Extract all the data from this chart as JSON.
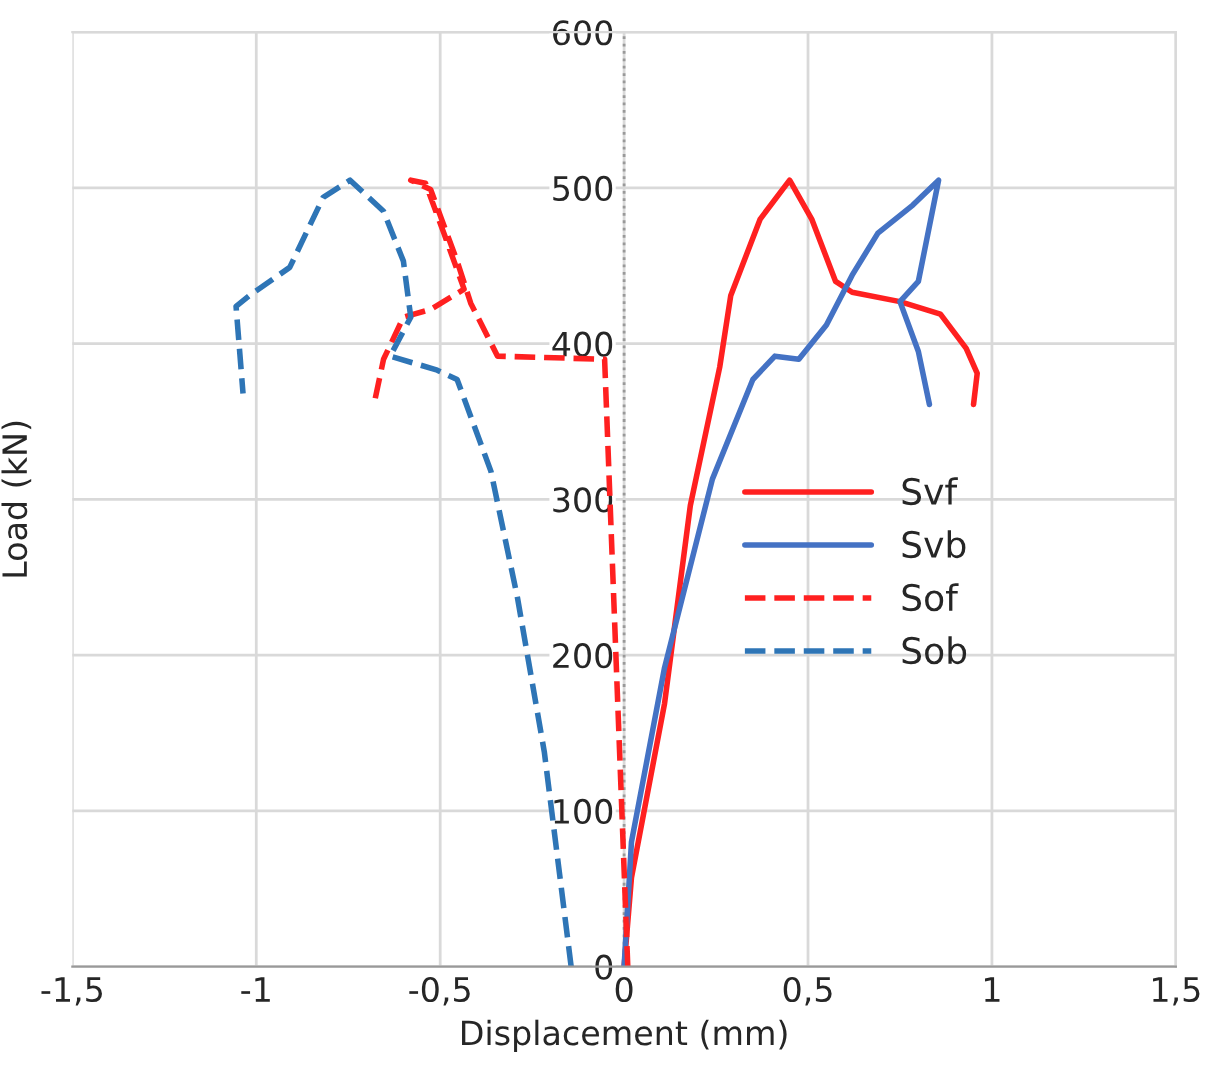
{
  "chart_data": {
    "type": "line",
    "xlabel": "Displacement (mm)",
    "ylabel": "Load (kN)",
    "xlim": [
      -1.5,
      1.5
    ],
    "xticks": [
      {
        "value": -1.5,
        "label": "-1,5"
      },
      {
        "value": -1,
        "label": "-1"
      },
      {
        "value": -0.5,
        "label": "-0,5"
      },
      0,
      {
        "value": 0.5,
        "label": "0,5"
      },
      1,
      {
        "value": 1.5,
        "label": "1,5"
      }
    ],
    "ylim": [
      0,
      600
    ],
    "yticks": [
      0,
      100,
      200,
      300,
      400,
      500,
      600
    ],
    "grid": true,
    "legend": "right",
    "ref_lines": [
      {
        "axis": "x",
        "value": 0,
        "color": "#999999",
        "line_style": "dotted"
      }
    ],
    "series": [
      {
        "name": "Svf",
        "color": "#ff2020",
        "line_style": "solid",
        "x": [
          0,
          0.02,
          0.11,
          0.18,
          0.26,
          0.29,
          0.37,
          0.45,
          0.51,
          0.575,
          0.62,
          0.75,
          0.86,
          0.93,
          0.96,
          0.95
        ],
        "values": [
          0,
          57,
          169,
          296,
          385,
          431,
          480,
          505,
          480,
          440,
          433,
          427,
          419,
          397,
          381,
          361
        ]
      },
      {
        "name": "Svb",
        "color": "#4472c4",
        "line_style": "solid",
        "x": [
          0,
          0.02,
          0.11,
          0.24,
          0.35,
          0.41,
          0.475,
          0.55,
          0.62,
          0.69,
          0.785,
          0.855,
          0.8,
          0.75,
          0.8,
          0.83
        ],
        "values": [
          0,
          80,
          192,
          313,
          377,
          392,
          390,
          412,
          444,
          471,
          489,
          505,
          440,
          427,
          395,
          361
        ]
      },
      {
        "name": "Sof",
        "color": "#ff2020",
        "line_style": "dashed",
        "x": [
          0.01,
          -0.053,
          -0.344,
          -0.417,
          -0.454,
          -0.526,
          -0.58,
          -0.54,
          -0.49,
          -0.435,
          -0.526,
          -0.6,
          -0.654,
          -0.68
        ],
        "values": [
          0,
          390,
          392,
          426,
          453,
          499,
          505,
          503,
          471,
          435,
          422,
          417,
          390,
          361
        ]
      },
      {
        "name": "Sob",
        "color": "#2e75b6",
        "line_style": "dashed",
        "x": [
          -0.144,
          -0.217,
          -0.29,
          -0.362,
          -0.454,
          -0.508,
          -0.636,
          -0.58,
          -0.6,
          -0.654,
          -0.745,
          -0.818,
          -0.909,
          -1.018,
          -1.055,
          -1.036
        ],
        "values": [
          0,
          138,
          237,
          318,
          377,
          383,
          392,
          417,
          453,
          485,
          505,
          494,
          449,
          431,
          424,
          368
        ]
      }
    ]
  }
}
